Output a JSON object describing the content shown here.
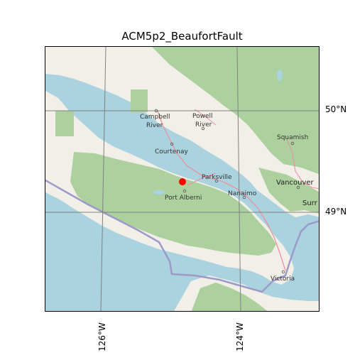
{
  "title": "ACM5p2_BeaufortFault",
  "axes": {
    "lat_ticks": [
      "50°N",
      "49°N"
    ],
    "lon_ticks": [
      "126°W",
      "124°W"
    ]
  },
  "places": [
    {
      "key": "campbell",
      "lines": [
        "Campbell",
        "River"
      ]
    },
    {
      "key": "powell",
      "lines": [
        "Powell",
        "River"
      ]
    },
    {
      "key": "courtenay",
      "lines": [
        "Courtenay"
      ]
    },
    {
      "key": "parksville",
      "lines": [
        "Parksville"
      ]
    },
    {
      "key": "nanaimo",
      "lines": [
        "Nanaimo"
      ]
    },
    {
      "key": "port-alberni",
      "lines": [
        "Port Alberni"
      ]
    },
    {
      "key": "squamish",
      "lines": [
        "Squamish"
      ]
    },
    {
      "key": "vancouver",
      "lines": [
        "Vancouver"
      ]
    },
    {
      "key": "surrey",
      "lines": [
        "Surr"
      ]
    },
    {
      "key": "victoria",
      "lines": [
        "Victoria"
      ]
    }
  ],
  "marker": {
    "color": "#ff0000",
    "label": ""
  },
  "colors": {
    "water": "#aad3df",
    "land": "#f2efe9",
    "forest": "#add19e",
    "park": "#c8facc",
    "road": "#e892a2",
    "border": "#9e9ac8",
    "grid": "#808080"
  }
}
